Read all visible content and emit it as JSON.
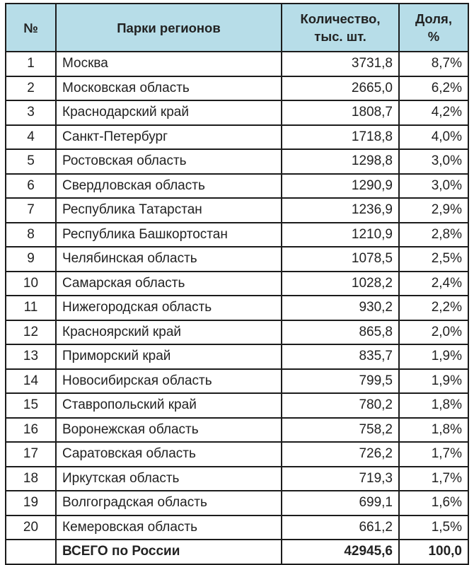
{
  "table": {
    "headers": {
      "number": "№",
      "region": "Парки регионов",
      "quantity": "Количество, тыс. шт.",
      "share": "Доля, %"
    },
    "rows": [
      {
        "num": "1",
        "name": "Москва",
        "qty": "3731,8",
        "share": "8,7%"
      },
      {
        "num": "2",
        "name": "Московская область",
        "qty": "2665,0",
        "share": "6,2%"
      },
      {
        "num": "3",
        "name": "Краснодарский край",
        "qty": "1808,7",
        "share": "4,2%"
      },
      {
        "num": "4",
        "name": "Санкт-Петербург",
        "qty": "1718,8",
        "share": "4,0%"
      },
      {
        "num": "5",
        "name": "Ростовская область",
        "qty": "1298,8",
        "share": "3,0%"
      },
      {
        "num": "6",
        "name": "Свердловская область",
        "qty": "1290,9",
        "share": "3,0%"
      },
      {
        "num": "7",
        "name": "Республика Татарстан",
        "qty": "1236,9",
        "share": "2,9%"
      },
      {
        "num": "8",
        "name": "Республика Башкортостан",
        "qty": "1210,9",
        "share": "2,8%"
      },
      {
        "num": "9",
        "name": "Челябинская область",
        "qty": "1078,5",
        "share": "2,5%"
      },
      {
        "num": "10",
        "name": "Самарская область",
        "qty": "1028,2",
        "share": "2,4%"
      },
      {
        "num": "11",
        "name": "Нижегородская область",
        "qty": "930,2",
        "share": "2,2%"
      },
      {
        "num": "12",
        "name": "Красноярский край",
        "qty": "865,8",
        "share": "2,0%"
      },
      {
        "num": "13",
        "name": "Приморский край",
        "qty": "835,7",
        "share": "1,9%"
      },
      {
        "num": "14",
        "name": "Новосибирская область",
        "qty": "799,5",
        "share": "1,9%"
      },
      {
        "num": "15",
        "name": "Ставропольский край",
        "qty": "780,2",
        "share": "1,8%"
      },
      {
        "num": "16",
        "name": "Воронежская область",
        "qty": "758,2",
        "share": "1,8%"
      },
      {
        "num": "17",
        "name": "Саратовская область",
        "qty": "726,2",
        "share": "1,7%"
      },
      {
        "num": "18",
        "name": "Иркутская область",
        "qty": "719,3",
        "share": "1,7%"
      },
      {
        "num": "19",
        "name": "Волгоградская область",
        "qty": "699,1",
        "share": "1,6%"
      },
      {
        "num": "20",
        "name": "Кемеровская область",
        "qty": "661,2",
        "share": "1,5%"
      }
    ],
    "total": {
      "num": "",
      "name": "ВСЕГО по России",
      "qty": "42945,6",
      "share": "100,0"
    }
  },
  "colors": {
    "header_bg": "#b7dde8",
    "border": "#1c1c1c",
    "text": "#222222"
  }
}
